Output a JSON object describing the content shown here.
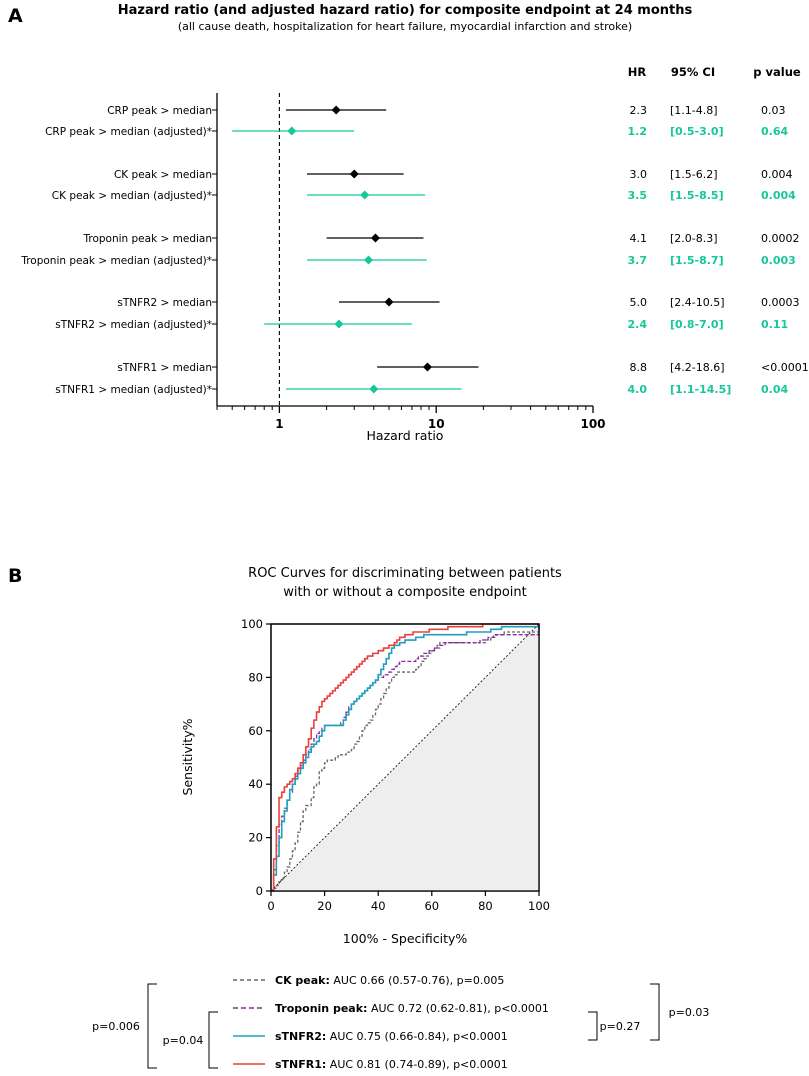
{
  "panel_a_letter": "A",
  "panel_b_letter": "B",
  "legend_items": [
    {
      "bold": "CK peak:",
      "rest": " AUC 0.66 (0.57-0.76), p=0.005",
      "color": "#666666",
      "dash": "4 3"
    },
    {
      "bold": "Troponin peak:",
      "rest": " AUC 0.72 (0.62-0.81), p<0.0001",
      "color": "#8b2a9c",
      "dash": "5 3"
    },
    {
      "bold": "sTNFR2:",
      "rest": " AUC 0.75 (0.66-0.84), p<0.0001",
      "color": "#1e9fbf",
      "dash": ""
    },
    {
      "bold": "sTNFR1:",
      "rest": " AUC 0.81 (0.74-0.89), p<0.0001",
      "color": "#e8413c",
      "dash": ""
    }
  ],
  "comparison_pvalues": {
    "left_outer": "p=0.006",
    "left_inner": "p=0.04",
    "right_inner": "p=0.27",
    "right_outer": "p=0.03"
  },
  "chart_data": [
    {
      "type": "forest",
      "title": "Hazard ratio (and adjusted hazard ratio) for composite endpoint at 24 months",
      "subtitle": "(all cause death, hospitalization for heart failure, myocardial infarction and stroke)",
      "xlabel": "Hazard ratio",
      "xscale": "log",
      "xlim": [
        0.4,
        100
      ],
      "xticks": [
        "1",
        "10",
        "100"
      ],
      "reference_line": 1,
      "table_headers": [
        "HR",
        "95% CI",
        "p value"
      ],
      "colors": {
        "unadjusted": "#000000",
        "adjusted": "#17c79a"
      },
      "rows": [
        {
          "label": "CRP peak > median",
          "hr": 2.3,
          "lo": 1.1,
          "hi": 4.8,
          "hr_text": "2.3",
          "ci_text": "[1.1-4.8]",
          "p_text": "0.03",
          "adjusted": false
        },
        {
          "label": "CRP peak > median (adjusted)*",
          "hr": 1.2,
          "lo": 0.5,
          "hi": 3.0,
          "hr_text": "1.2",
          "ci_text": "[0.5-3.0]",
          "p_text": "0.64",
          "adjusted": true
        },
        {
          "label": "CK peak > median",
          "hr": 3.0,
          "lo": 1.5,
          "hi": 6.2,
          "hr_text": "3.0",
          "ci_text": "[1.5-6.2]",
          "p_text": "0.004",
          "adjusted": false
        },
        {
          "label": "CK peak > median (adjusted)*",
          "hr": 3.5,
          "lo": 1.5,
          "hi": 8.5,
          "hr_text": "3.5",
          "ci_text": "[1.5-8.5]",
          "p_text": "0.004",
          "adjusted": true
        },
        {
          "label": "Troponin peak > median",
          "hr": 4.1,
          "lo": 2.0,
          "hi": 8.3,
          "hr_text": "4.1",
          "ci_text": "[2.0-8.3]",
          "p_text": "0.0002",
          "adjusted": false
        },
        {
          "label": "Troponin peak > median (adjusted)*",
          "hr": 3.7,
          "lo": 1.5,
          "hi": 8.7,
          "hr_text": "3.7",
          "ci_text": "[1.5-8.7]",
          "p_text": "0.003",
          "adjusted": true
        },
        {
          "label": "sTNFR2 > median",
          "hr": 5.0,
          "lo": 2.4,
          "hi": 10.5,
          "hr_text": "5.0",
          "ci_text": "[2.4-10.5]",
          "p_text": "0.0003",
          "adjusted": false
        },
        {
          "label": "sTNFR2 > median (adjusted)*",
          "hr": 2.4,
          "lo": 0.8,
          "hi": 7.0,
          "hr_text": "2.4",
          "ci_text": "[0.8-7.0]",
          "p_text": "0.11",
          "adjusted": true
        },
        {
          "label": "sTNFR1 > median",
          "hr": 8.8,
          "lo": 4.2,
          "hi": 18.6,
          "hr_text": "8.8",
          "ci_text": "[4.2-18.6]",
          "p_text": "<0.0001",
          "adjusted": false
        },
        {
          "label": "sTNFR1 > median (adjusted)*",
          "hr": 4.0,
          "lo": 1.1,
          "hi": 14.5,
          "hr_text": "4.0",
          "ci_text": "[1.1-14.5]",
          "p_text": "0.04",
          "adjusted": true
        }
      ]
    },
    {
      "type": "line",
      "title": "ROC Curves for discriminating between patients with or without a composite endpoint",
      "title_lines": [
        "ROC Curves for discriminating between patients",
        "with or without a composite endpoint"
      ],
      "xlabel": "100% - Specificity%",
      "ylabel": "Sensitivity%",
      "xlim": [
        0,
        100
      ],
      "ylim": [
        0,
        100
      ],
      "xticks": [
        "0",
        "20",
        "40",
        "60",
        "80",
        "100"
      ],
      "yticks": [
        "0",
        "20",
        "40",
        "60",
        "80",
        "100"
      ],
      "reference_diagonal": true,
      "series": [
        {
          "name": "CK peak",
          "color": "#666666",
          "dash": "3 2",
          "x": [
            0,
            1,
            2,
            3,
            4,
            5,
            6,
            7,
            8,
            9,
            10,
            11,
            12,
            13,
            14,
            15,
            16,
            17,
            18,
            19,
            20,
            21,
            22,
            23,
            24,
            25,
            26,
            27,
            28,
            29,
            30,
            31,
            32,
            33,
            34,
            35,
            36,
            37,
            38,
            39,
            40,
            41,
            42,
            43,
            44,
            45,
            46,
            47,
            48,
            49,
            50,
            51,
            52,
            53,
            54,
            55,
            56,
            57,
            58,
            59,
            60,
            61,
            62,
            63,
            64,
            65,
            66,
            67,
            68,
            69,
            70,
            71,
            72,
            73,
            74,
            75,
            76,
            77,
            78,
            79,
            80,
            81,
            82,
            83,
            84,
            85,
            86,
            87,
            100
          ],
          "y": [
            0,
            1,
            2,
            4,
            5,
            7,
            9,
            12,
            15,
            18,
            22,
            26,
            30,
            32,
            32,
            35,
            39,
            40,
            45,
            46,
            48,
            49,
            49,
            49,
            50,
            51,
            51,
            51,
            52,
            52,
            53,
            55,
            56,
            58,
            60,
            62,
            63,
            64,
            66,
            68,
            70,
            72,
            74,
            76,
            78,
            80,
            81,
            82,
            82,
            82,
            82,
            82,
            82,
            82,
            83,
            84,
            86,
            87,
            88,
            89,
            90,
            91,
            92,
            93,
            93,
            93,
            93,
            93,
            93,
            93,
            93,
            93,
            93,
            93,
            93,
            93,
            93,
            93,
            93,
            93,
            94,
            94,
            95,
            95,
            96,
            96,
            96,
            97,
            100
          ]
        },
        {
          "name": "Troponin peak",
          "color": "#8b2a9c",
          "dash": "4 2",
          "x": [
            0,
            1,
            2,
            3,
            4,
            5,
            6,
            7,
            8,
            9,
            10,
            11,
            12,
            13,
            14,
            15,
            16,
            17,
            18,
            19,
            20,
            21,
            22,
            23,
            24,
            25,
            26,
            27,
            28,
            29,
            30,
            31,
            32,
            33,
            34,
            35,
            36,
            37,
            38,
            39,
            40,
            41,
            42,
            43,
            44,
            45,
            46,
            47,
            48,
            49,
            50,
            51,
            52,
            53,
            54,
            55,
            56,
            57,
            58,
            59,
            60,
            61,
            62,
            63,
            64,
            65,
            66,
            67,
            68,
            69,
            70,
            71,
            72,
            73,
            74,
            75,
            76,
            77,
            78,
            79,
            80,
            81,
            82,
            83,
            84,
            85,
            86,
            87,
            100
          ],
          "y": [
            0,
            8,
            17,
            25,
            28,
            31,
            34,
            37,
            40,
            43,
            45,
            47,
            49,
            51,
            53,
            55,
            57,
            59,
            60,
            61,
            62,
            62,
            62,
            62,
            62,
            62,
            63,
            65,
            67,
            69,
            70,
            71,
            72,
            73,
            74,
            75,
            76,
            77,
            78,
            79,
            80,
            80,
            81,
            81,
            82,
            83,
            84,
            85,
            86,
            86,
            86,
            86,
            86,
            86,
            87,
            88,
            88,
            89,
            89,
            90,
            90,
            91,
            91,
            92,
            92,
            93,
            93,
            93,
            93,
            93,
            93,
            93,
            93,
            93,
            93,
            93,
            93,
            93,
            94,
            94,
            94,
            95,
            95,
            96,
            96,
            96,
            96,
            96,
            100
          ]
        },
        {
          "name": "sTNFR2",
          "color": "#1e9fbf",
          "dash": "",
          "x": [
            0,
            1,
            2,
            3,
            4,
            5,
            6,
            7,
            8,
            9,
            10,
            11,
            12,
            13,
            14,
            15,
            16,
            17,
            18,
            19,
            20,
            21,
            22,
            23,
            24,
            25,
            26,
            27,
            28,
            29,
            30,
            31,
            32,
            33,
            34,
            35,
            36,
            37,
            38,
            39,
            40,
            41,
            42,
            43,
            44,
            45,
            46,
            47,
            48,
            49,
            50,
            51,
            52,
            53,
            54,
            55,
            56,
            57,
            58,
            59,
            60,
            61,
            62,
            63,
            64,
            65,
            66,
            67,
            68,
            69,
            70,
            71,
            72,
            73,
            74,
            75,
            76,
            77,
            78,
            79,
            80,
            81,
            82,
            83,
            84,
            85,
            86,
            87,
            100
          ],
          "y": [
            0,
            6,
            13,
            20,
            26,
            30,
            34,
            38,
            40,
            42,
            44,
            46,
            48,
            50,
            52,
            54,
            55,
            56,
            58,
            60,
            62,
            62,
            62,
            62,
            62,
            62,
            62,
            64,
            66,
            68,
            70,
            71,
            72,
            73,
            74,
            75,
            76,
            77,
            78,
            79,
            81,
            83,
            85,
            87,
            89,
            91,
            92,
            92,
            93,
            93,
            94,
            94,
            94,
            94,
            95,
            95,
            95,
            96,
            96,
            96,
            96,
            96,
            96,
            96,
            96,
            96,
            96,
            96,
            96,
            96,
            96,
            96,
            96,
            97,
            97,
            97,
            97,
            97,
            97,
            97,
            97,
            97,
            98,
            98,
            98,
            98,
            99,
            99,
            100
          ]
        },
        {
          "name": "sTNFR1",
          "color": "#e8413c",
          "dash": "",
          "x": [
            0,
            1,
            2,
            3,
            4,
            5,
            6,
            7,
            8,
            9,
            10,
            11,
            12,
            13,
            14,
            15,
            16,
            17,
            18,
            19,
            20,
            21,
            22,
            23,
            24,
            25,
            26,
            27,
            28,
            29,
            30,
            31,
            32,
            33,
            34,
            35,
            36,
            37,
            38,
            39,
            40,
            41,
            42,
            43,
            44,
            45,
            46,
            47,
            48,
            49,
            50,
            51,
            52,
            53,
            54,
            55,
            56,
            57,
            58,
            59,
            60,
            61,
            62,
            63,
            64,
            65,
            66,
            67,
            68,
            69,
            70,
            71,
            72,
            73,
            74,
            75,
            76,
            77,
            78,
            79,
            80,
            81,
            82,
            83,
            84,
            85,
            86,
            87,
            100
          ],
          "y": [
            0,
            12,
            24,
            35,
            37,
            39,
            40,
            41,
            42,
            44,
            46,
            48,
            51,
            54,
            57,
            61,
            64,
            67,
            69,
            71,
            72,
            73,
            74,
            75,
            76,
            77,
            78,
            79,
            80,
            81,
            82,
            83,
            84,
            85,
            86,
            87,
            88,
            88,
            89,
            89,
            90,
            90,
            91,
            91,
            92,
            92,
            93,
            94,
            95,
            95,
            96,
            96,
            96,
            97,
            97,
            97,
            97,
            97,
            97,
            98,
            98,
            98,
            98,
            98,
            98,
            98,
            99,
            99,
            99,
            99,
            99,
            99,
            99,
            99,
            99,
            99,
            99,
            99,
            99,
            100,
            100,
            100,
            100,
            100,
            100,
            100,
            100,
            100,
            100
          ]
        }
      ]
    }
  ]
}
